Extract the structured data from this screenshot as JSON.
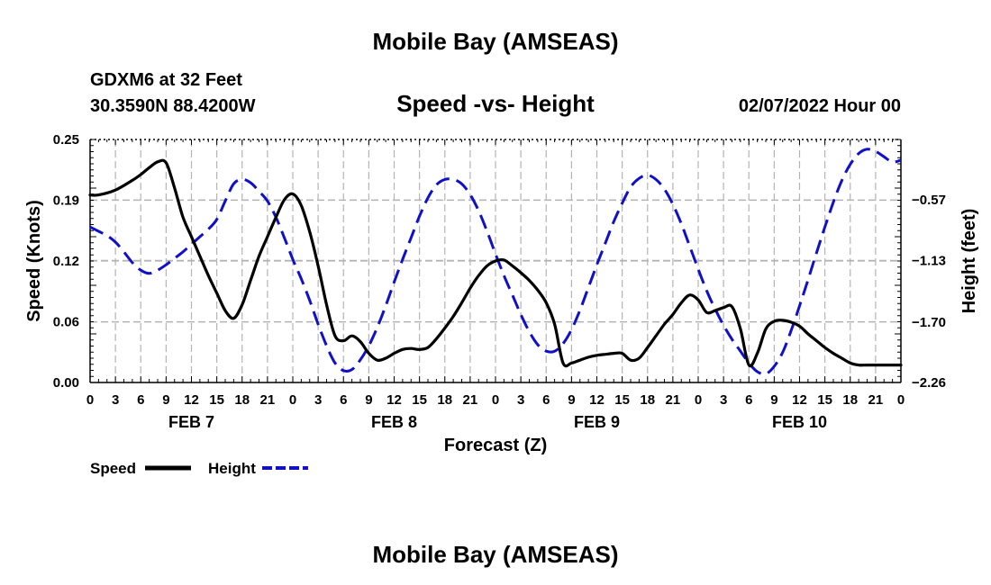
{
  "titles": {
    "main": "Mobile Bay (AMSEAS)",
    "station": "GDXM6 at 32 Feet",
    "coords": "30.3590N  88.4200W",
    "subtitle": "Speed -vs- Height",
    "date": "02/07/2022 Hour 00",
    "footer": "Mobile Bay (AMSEAS)"
  },
  "colors": {
    "speed": "#000000",
    "height": "#1010c8",
    "grid": "#b4b4b4"
  },
  "chart_data": {
    "type": "line",
    "title": "Speed -vs- Height",
    "xlabel": "Forecast (Z)",
    "ylabel": "Speed (Knots)",
    "y2label": "Height (feet)",
    "xlim": [
      0,
      96
    ],
    "ylim": [
      0,
      0.25
    ],
    "y2lim": [
      -2.26,
      -0.01
    ],
    "x_tick_hours": [
      0,
      3,
      6,
      9,
      12,
      15,
      18,
      21,
      24,
      27,
      30,
      33,
      36,
      39,
      42,
      45,
      48,
      51,
      54,
      57,
      60,
      63,
      66,
      69,
      72,
      75,
      78,
      81,
      84,
      87,
      90,
      93,
      96
    ],
    "x_tick_labels": [
      "0",
      "3",
      "6",
      "9",
      "12",
      "15",
      "18",
      "21",
      "0",
      "3",
      "6",
      "9",
      "12",
      "15",
      "18",
      "21",
      "0",
      "3",
      "6",
      "9",
      "12",
      "15",
      "18",
      "21",
      "0",
      "3",
      "6",
      "9",
      "12",
      "15",
      "18",
      "21",
      "0"
    ],
    "day_labels": [
      {
        "hour": 12,
        "label": "FEB 7"
      },
      {
        "hour": 36,
        "label": "FEB 8"
      },
      {
        "hour": 60,
        "label": "FEB 9"
      },
      {
        "hour": 84,
        "label": "FEB 10"
      }
    ],
    "y_ticks": [
      0,
      0.0625,
      0.125,
      0.1875,
      0.25
    ],
    "y_tick_labels": [
      "0.00",
      "0.06",
      "0.12",
      "0.19",
      "0.25"
    ],
    "y2_ticks": [
      -2.26,
      -1.7,
      -1.13,
      -0.57
    ],
    "y2_tick_labels": [
      "−2.26",
      "−1.70",
      "−1.13",
      "−0.57"
    ],
    "series": [
      {
        "name": "Speed",
        "axis": "left",
        "style": "solid",
        "x": [
          0,
          1,
          3,
          5,
          6,
          7,
          8,
          9,
          10,
          11,
          12,
          13,
          14,
          15,
          16,
          17,
          18,
          19,
          20,
          21,
          22,
          23,
          24,
          25,
          26,
          27,
          28,
          29,
          30,
          31,
          32,
          33,
          34,
          35,
          36,
          37,
          38,
          39,
          40,
          41,
          42,
          43,
          44,
          45,
          46,
          47,
          48,
          49,
          50,
          51,
          52,
          53,
          54,
          55,
          56,
          57,
          58,
          59,
          60,
          61,
          62,
          63,
          64,
          65,
          66,
          67,
          68,
          69,
          70,
          71,
          72,
          73,
          74,
          75,
          76,
          77,
          78,
          79,
          80,
          81,
          82,
          83,
          84,
          85,
          86,
          87,
          88,
          89,
          90,
          91,
          92,
          93,
          94,
          95,
          96
        ],
        "values": [
          0.193,
          0.193,
          0.198,
          0.208,
          0.214,
          0.221,
          0.227,
          0.226,
          0.2,
          0.17,
          0.15,
          0.13,
          0.11,
          0.092,
          0.074,
          0.066,
          0.08,
          0.105,
          0.13,
          0.15,
          0.17,
          0.188,
          0.194,
          0.182,
          0.155,
          0.12,
          0.08,
          0.048,
          0.043,
          0.048,
          0.042,
          0.03,
          0.023,
          0.025,
          0.03,
          0.034,
          0.035,
          0.034,
          0.036,
          0.045,
          0.056,
          0.068,
          0.082,
          0.097,
          0.11,
          0.12,
          0.125,
          0.126,
          0.12,
          0.113,
          0.105,
          0.095,
          0.082,
          0.06,
          0.02,
          0.02,
          0.023,
          0.026,
          0.028,
          0.029,
          0.03,
          0.03,
          0.023,
          0.025,
          0.036,
          0.048,
          0.06,
          0.07,
          0.082,
          0.09,
          0.085,
          0.072,
          0.074,
          0.077,
          0.078,
          0.055,
          0.018,
          0.03,
          0.055,
          0.063,
          0.064,
          0.062,
          0.058,
          0.05,
          0.043,
          0.036,
          0.03,
          0.025,
          0.02,
          0.018,
          0.018,
          0.018,
          0.018,
          0.018,
          0.018
        ]
      },
      {
        "name": "Height",
        "axis": "right",
        "style": "dashed",
        "x": [
          0,
          1,
          2,
          3,
          4,
          5,
          6,
          7,
          8,
          9,
          10,
          11,
          12,
          13,
          14,
          15,
          16,
          17,
          18,
          19,
          20,
          21,
          22,
          23,
          24,
          25,
          26,
          27,
          28,
          29,
          30,
          31,
          32,
          33,
          34,
          35,
          36,
          37,
          38,
          39,
          40,
          41,
          42,
          43,
          44,
          45,
          46,
          47,
          48,
          49,
          50,
          51,
          52,
          53,
          54,
          55,
          56,
          57,
          58,
          59,
          60,
          61,
          62,
          63,
          64,
          65,
          66,
          67,
          68,
          69,
          70,
          71,
          72,
          73,
          74,
          75,
          76,
          77,
          78,
          79,
          80,
          81,
          82,
          83,
          84,
          85,
          86,
          87,
          88,
          89,
          90,
          91,
          92,
          93,
          94,
          95,
          96
        ],
        "values": [
          -0.82,
          -0.86,
          -0.9,
          -0.96,
          -1.05,
          -1.15,
          -1.22,
          -1.25,
          -1.22,
          -1.17,
          -1.11,
          -1.05,
          -0.98,
          -0.91,
          -0.84,
          -0.75,
          -0.58,
          -0.42,
          -0.38,
          -0.41,
          -0.49,
          -0.58,
          -0.73,
          -0.92,
          -1.12,
          -1.3,
          -1.5,
          -1.72,
          -1.92,
          -2.08,
          -2.15,
          -2.14,
          -2.05,
          -1.92,
          -1.75,
          -1.55,
          -1.33,
          -1.12,
          -0.92,
          -0.72,
          -0.55,
          -0.43,
          -0.38,
          -0.38,
          -0.42,
          -0.52,
          -0.67,
          -0.86,
          -1.07,
          -1.27,
          -1.45,
          -1.63,
          -1.79,
          -1.91,
          -1.97,
          -1.97,
          -1.9,
          -1.77,
          -1.59,
          -1.38,
          -1.17,
          -0.97,
          -0.77,
          -0.6,
          -0.45,
          -0.37,
          -0.34,
          -0.38,
          -0.47,
          -0.61,
          -0.79,
          -1.0,
          -1.21,
          -1.41,
          -1.58,
          -1.73,
          -1.86,
          -1.97,
          -2.08,
          -2.16,
          -2.18,
          -2.11,
          -1.98,
          -1.78,
          -1.55,
          -1.31,
          -1.06,
          -0.82,
          -0.59,
          -0.39,
          -0.24,
          -0.14,
          -0.1,
          -0.12,
          -0.17,
          -0.22,
          -0.2
        ]
      }
    ]
  },
  "legend": {
    "speed_label": "Speed",
    "height_label": "Height"
  }
}
